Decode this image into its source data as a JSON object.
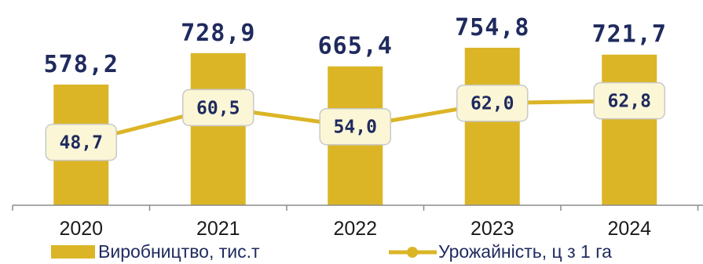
{
  "chart_data": {
    "type": "bar",
    "categories": [
      "2020",
      "2021",
      "2022",
      "2023",
      "2024"
    ],
    "series": [
      {
        "name": "Виробництво, тис.т",
        "type": "bar",
        "values": [
          578.2,
          728.9,
          665.4,
          754.8,
          721.7
        ],
        "labels": [
          "578,2",
          "728,9",
          "665,4",
          "754,8",
          "721,7"
        ],
        "color": "#dbb526"
      },
      {
        "name": "Урожайність, ц з 1 га",
        "type": "line",
        "values": [
          48.7,
          60.5,
          54.0,
          62.0,
          62.8
        ],
        "labels": [
          "48,7",
          "60,5",
          "54,0",
          "62,0",
          "62,8"
        ],
        "color": "#dbb526"
      }
    ],
    "label_color": "#1f2a5e",
    "label_box_fill": "#fbf6d6",
    "grid": false,
    "legend_position": "bottom"
  }
}
